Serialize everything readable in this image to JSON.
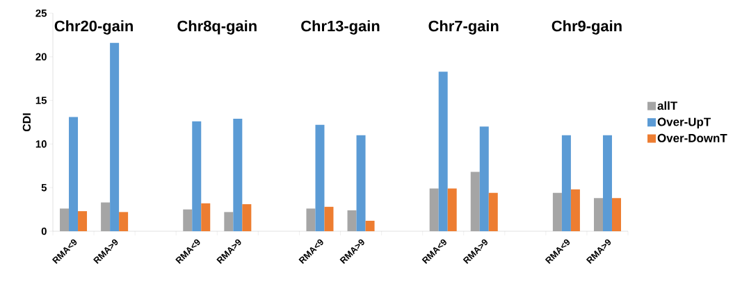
{
  "chart_data": {
    "type": "bar",
    "ylabel": "CDI",
    "categories": [
      "RMA<9",
      "RMA>9",
      null,
      "RMA<9",
      "RMA>9",
      null,
      "RMA<9",
      "RMA>9",
      null,
      "RMA<9",
      "RMA>9",
      null,
      "RMA<9",
      "RMA>9"
    ],
    "series": [
      {
        "name": "allT",
        "color": "#a5a5a5",
        "values": [
          2.6,
          3.3,
          null,
          2.5,
          2.2,
          null,
          2.6,
          2.4,
          null,
          4.9,
          6.8,
          null,
          4.4,
          3.8
        ]
      },
      {
        "name": "Over-UpT",
        "color": "#5b9bd5",
        "values": [
          13.1,
          21.6,
          null,
          12.6,
          12.9,
          null,
          12.2,
          11.0,
          null,
          18.3,
          12.0,
          null,
          11.0,
          11.0
        ]
      },
      {
        "name": "Over-DownT",
        "color": "#ed7d31",
        "values": [
          2.3,
          2.2,
          null,
          3.2,
          3.1,
          null,
          2.8,
          1.2,
          null,
          4.9,
          4.4,
          null,
          4.8,
          3.8
        ]
      }
    ],
    "ylim": [
      0,
      25
    ],
    "yticks": [
      0,
      5,
      10,
      15,
      20,
      25
    ],
    "legend": "right",
    "annotations": [
      "Chr20-gain",
      "Chr8q-gain",
      "Chr13-gain",
      "Chr7-gain",
      "Chr9-gain"
    ]
  }
}
